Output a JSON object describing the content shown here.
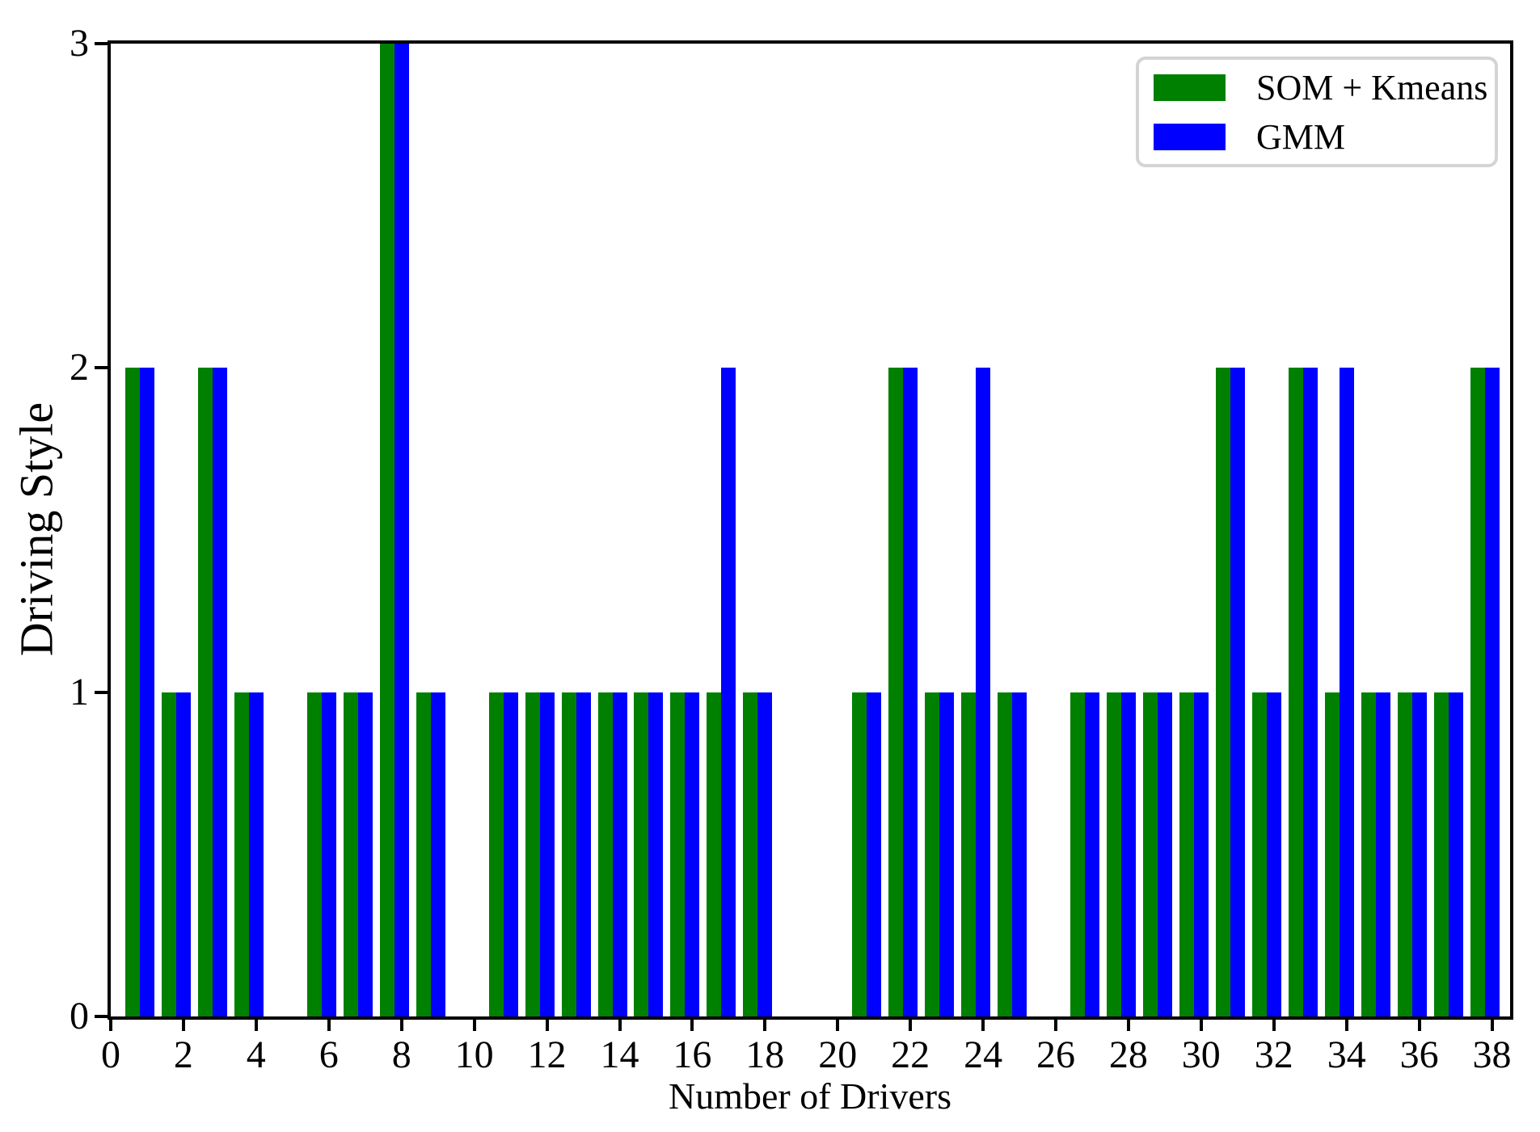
{
  "chart_data": {
    "type": "bar",
    "title": "",
    "xlabel": "Number of Drivers",
    "ylabel": "Driving Style",
    "x": [
      1,
      2,
      3,
      4,
      5,
      6,
      7,
      8,
      9,
      10,
      11,
      12,
      13,
      14,
      15,
      16,
      17,
      18,
      19,
      20,
      21,
      22,
      23,
      24,
      25,
      26,
      27,
      28,
      29,
      30,
      31,
      32,
      33,
      34,
      35,
      36,
      37,
      38
    ],
    "series": [
      {
        "name": "SOM + Kmeans",
        "color": "#008000",
        "center_offset": -0.4,
        "values": [
          2,
          1,
          2,
          1,
          0,
          1,
          1,
          3,
          1,
          0,
          1,
          1,
          1,
          1,
          1,
          1,
          1,
          1,
          0,
          0,
          1,
          2,
          1,
          1,
          1,
          0,
          1,
          1,
          1,
          1,
          2,
          1,
          2,
          1,
          1,
          1,
          1,
          2
        ]
      },
      {
        "name": "GMM",
        "color": "#0000ff",
        "center_offset": 0.0,
        "values": [
          2,
          1,
          2,
          1,
          0,
          1,
          1,
          3,
          1,
          0,
          1,
          1,
          1,
          1,
          1,
          1,
          2,
          1,
          0,
          0,
          1,
          2,
          1,
          2,
          1,
          0,
          1,
          1,
          1,
          1,
          2,
          1,
          2,
          2,
          1,
          1,
          1,
          2
        ]
      }
    ],
    "bar_width": 0.4,
    "xticks": [
      0,
      2,
      4,
      6,
      8,
      10,
      12,
      14,
      16,
      18,
      20,
      22,
      24,
      26,
      28,
      30,
      32,
      34,
      36,
      38
    ],
    "yticks": [
      0,
      1,
      2,
      3
    ],
    "xlim": [
      0,
      38.5
    ],
    "ylim": [
      0,
      3
    ],
    "grid": false,
    "legend_position": "upper right",
    "axis_color": "#000000",
    "background_color": "#ffffff"
  }
}
